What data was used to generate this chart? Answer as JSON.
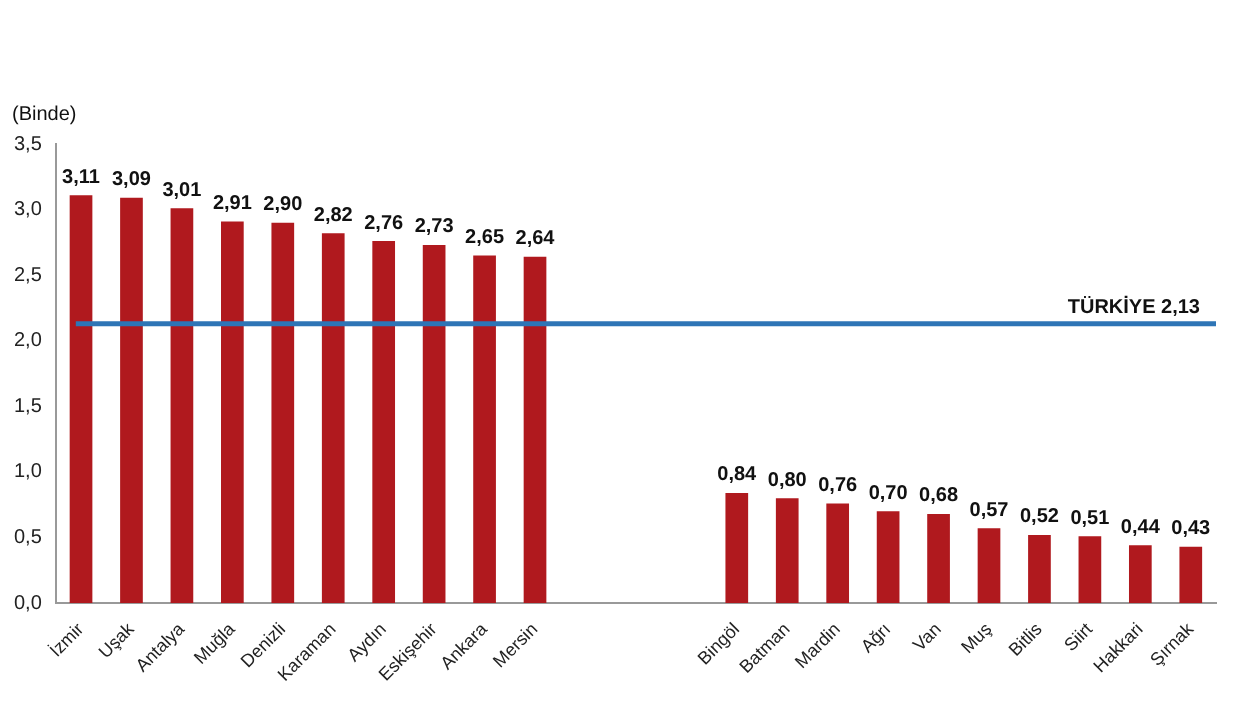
{
  "chart_data": {
    "type": "bar",
    "ylabel": "(Binde)",
    "categories": [
      "İzmir",
      "Uşak",
      "Antalya",
      "Muğla",
      "Denizli",
      "Karaman",
      "Aydın",
      "Eskişehir",
      "Ankara",
      "Mersin",
      null,
      null,
      null,
      "Bingöl",
      "Batman",
      "Mardin",
      "Ağrı",
      "Van",
      "Muş",
      "Bitlis",
      "Siirt",
      "Hakkari",
      "Şırnak"
    ],
    "values": [
      3.11,
      3.09,
      3.01,
      2.91,
      2.9,
      2.82,
      2.76,
      2.73,
      2.65,
      2.64,
      null,
      null,
      null,
      0.84,
      0.8,
      0.76,
      0.7,
      0.68,
      0.57,
      0.52,
      0.51,
      0.44,
      0.43
    ],
    "value_labels": [
      "3,11",
      "3,09",
      "3,01",
      "2,91",
      "2,90",
      "2,82",
      "2,76",
      "2,73",
      "2,65",
      "2,64",
      null,
      null,
      null,
      "0,84",
      "0,80",
      "0,76",
      "0,70",
      "0,68",
      "0,57",
      "0,52",
      "0,51",
      "0,44",
      "0,43"
    ],
    "color": "#b0191e",
    "ylim": [
      0,
      3.5
    ],
    "yticks": [
      {
        "value": 0,
        "label": "0,0"
      },
      {
        "value": 0.5,
        "label": "0,5"
      },
      {
        "value": 1,
        "label": "1,0"
      },
      {
        "value": 1.5,
        "label": "1,5"
      },
      {
        "value": 2,
        "label": "2,0"
      },
      {
        "value": 2.5,
        "label": "2,5"
      },
      {
        "value": 3,
        "label": "3,0"
      },
      {
        "value": 3.5,
        "label": "3,5"
      }
    ],
    "ref_lines": [
      {
        "axis": "y",
        "value": 2.13,
        "label": "TÜRKİYE 2,13",
        "color": "#2e75b6"
      }
    ],
    "grid": false,
    "legend": false
  }
}
